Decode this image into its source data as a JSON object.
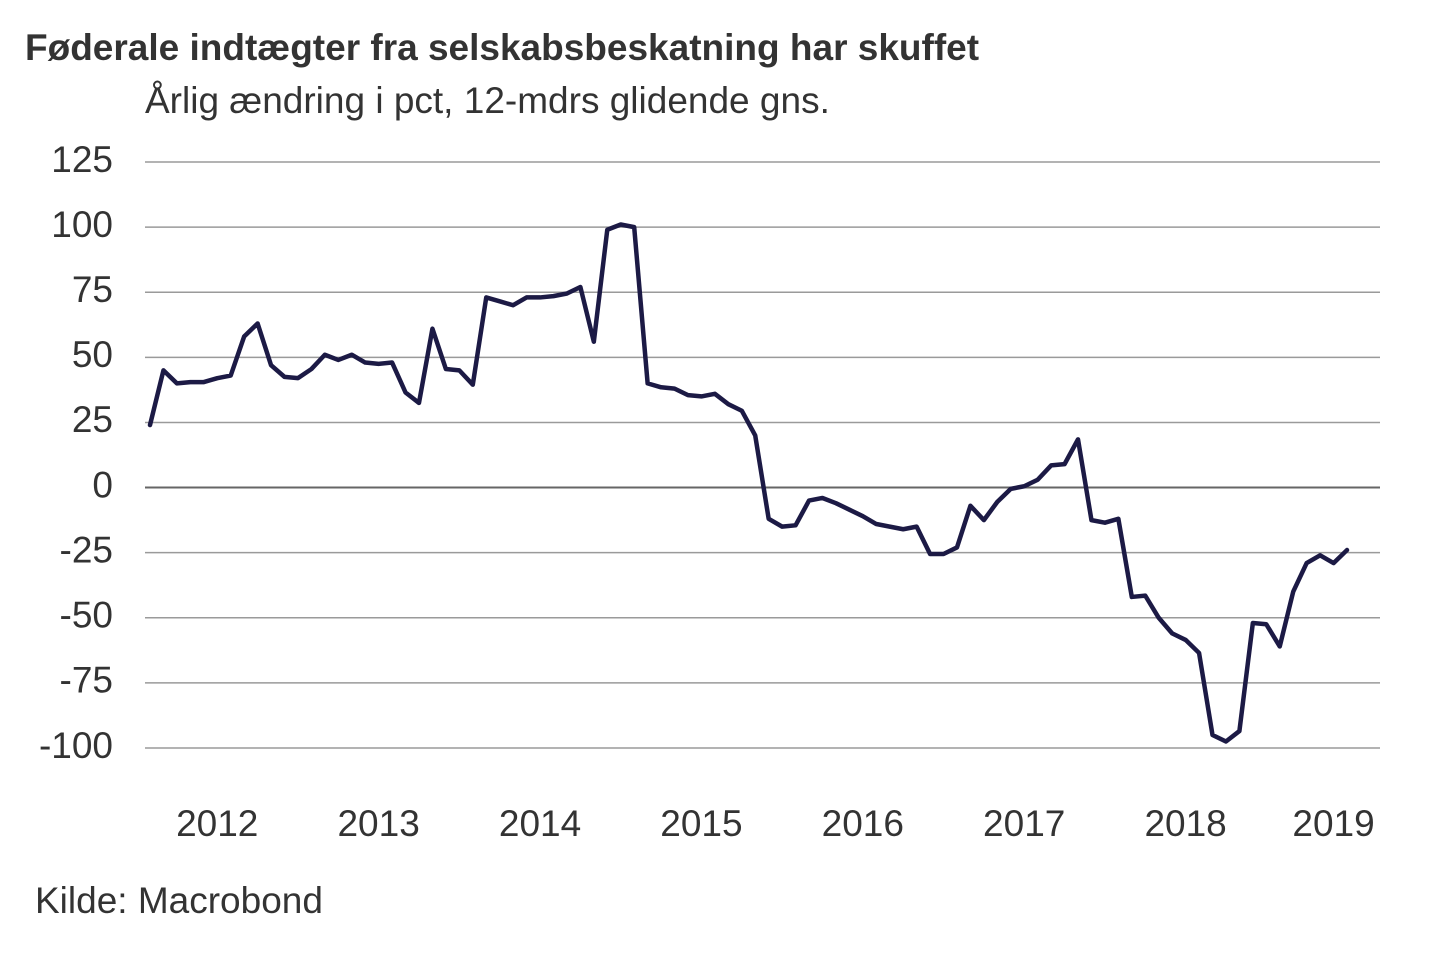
{
  "chart_data": {
    "type": "line",
    "title": "Føderale indtægter fra selskabsbeskatning har skuffet",
    "subtitle": "Årlig ændring i pct, 12-mdrs glidende gns.",
    "source": "Kilde: Macrobond",
    "categories": [
      null,
      null,
      null,
      null,
      null,
      "2012",
      null,
      null,
      null,
      null,
      null,
      null,
      null,
      null,
      null,
      null,
      null,
      "2013",
      null,
      null,
      null,
      null,
      null,
      null,
      null,
      null,
      null,
      null,
      null,
      "2014",
      null,
      null,
      null,
      null,
      null,
      null,
      null,
      null,
      null,
      null,
      null,
      "2015",
      null,
      null,
      null,
      null,
      null,
      null,
      null,
      null,
      null,
      null,
      null,
      "2016",
      null,
      null,
      null,
      null,
      null,
      null,
      null,
      null,
      null,
      null,
      null,
      "2017",
      null,
      null,
      null,
      null,
      null,
      null,
      null,
      null,
      null,
      null,
      null,
      "2018",
      null,
      null,
      null,
      null,
      null,
      null,
      null,
      null,
      null,
      null,
      "2019",
      null
    ],
    "values": [
      24,
      45,
      40,
      40.5,
      40.5,
      42,
      43,
      58,
      63,
      47,
      42.5,
      42,
      45.5,
      51,
      49,
      51,
      48,
      47.5,
      48,
      36.5,
      32.5,
      61,
      45.5,
      45,
      39.5,
      73,
      71.5,
      70,
      73,
      73,
      73.5,
      74.5,
      77,
      56,
      99,
      101,
      100,
      40,
      38.5,
      38,
      35.5,
      35,
      36,
      32,
      29.5,
      20,
      -12,
      -15,
      -14.5,
      -5,
      -4,
      -6,
      -8.5,
      -11,
      -14,
      -15,
      -16,
      -15,
      -25.5,
      -25.5,
      -23,
      -7,
      -12.5,
      -5.5,
      -0.5,
      0.5,
      3,
      8.5,
      9,
      18.5,
      -12.5,
      -13.5,
      -12,
      -42,
      -41.5,
      -50,
      -56,
      -58.5,
      -63.5,
      -95,
      -97.5,
      -93.5,
      -52,
      -52.5,
      -61,
      -40,
      -29,
      -26,
      -29,
      -24
    ],
    "color": "#1c1a45",
    "ylim": [
      -100,
      125
    ],
    "yticks": [
      -100,
      -75,
      -50,
      -25,
      0,
      25,
      50,
      75,
      100,
      125
    ],
    "grid": true
  }
}
